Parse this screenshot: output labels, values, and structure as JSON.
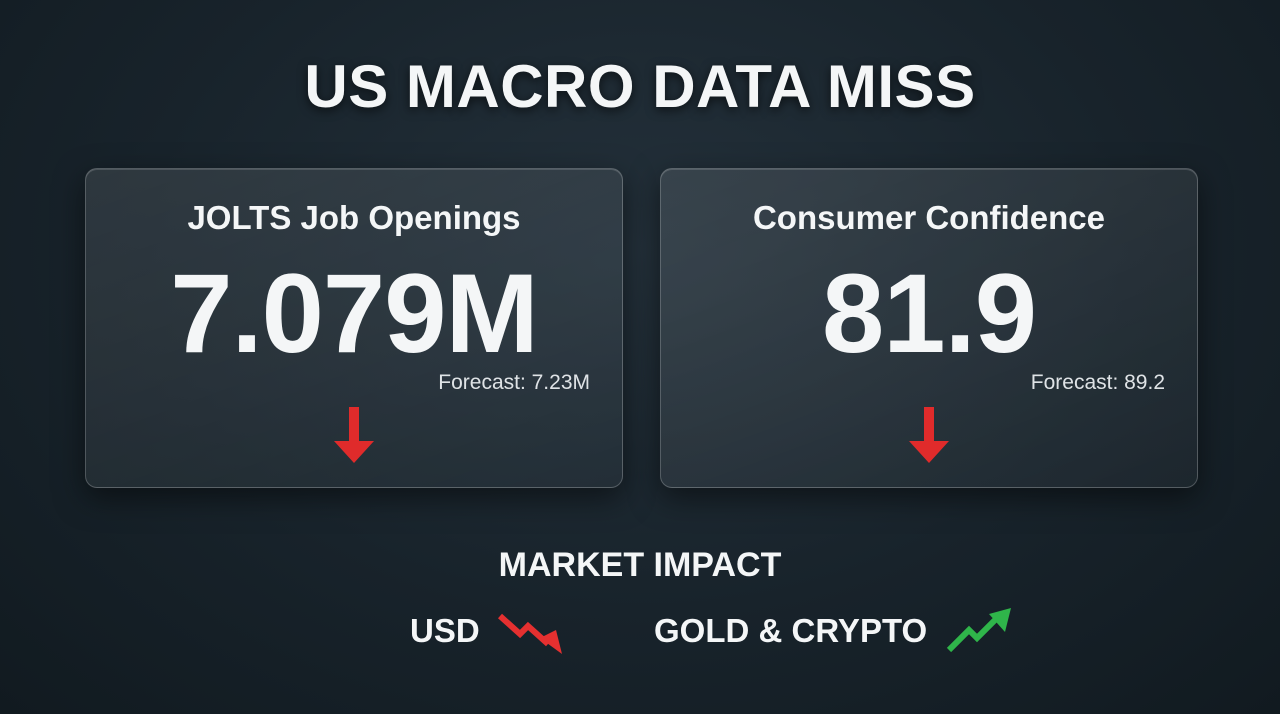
{
  "header": {
    "title": "US MACRO DATA MISS"
  },
  "cards": [
    {
      "label": "JOLTS Job Openings",
      "value": "7.079M",
      "forecast": "Forecast: 7.23M"
    },
    {
      "label": "Consumer Confidence",
      "value": "81.9",
      "forecast": "Forecast: 89.2"
    }
  ],
  "impact": {
    "heading": "MARKET IMPACT",
    "items": [
      "USD",
      "GOLD & CRYPTO"
    ]
  }
}
